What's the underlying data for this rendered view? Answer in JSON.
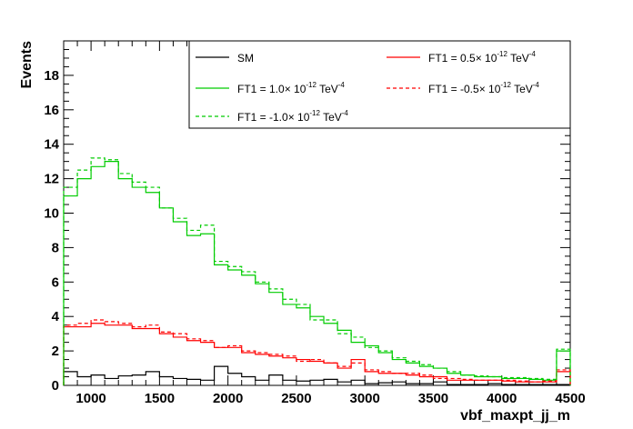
{
  "chart_data": {
    "type": "line",
    "style": "step-histogram",
    "xlabel": "vbf_maxpt_jj_m",
    "ylabel": "Events",
    "xlim": [
      800,
      4500
    ],
    "ylim": [
      0,
      20
    ],
    "x_ticks": [
      1000,
      1500,
      2000,
      2500,
      3000,
      3500,
      4000,
      4500
    ],
    "y_ticks": [
      0,
      2,
      4,
      6,
      8,
      10,
      12,
      14,
      16,
      18
    ],
    "bin_edges": [
      800,
      900,
      1000,
      1100,
      1200,
      1300,
      1400,
      1500,
      1600,
      1700,
      1800,
      1900,
      2000,
      2100,
      2200,
      2300,
      2400,
      2500,
      2600,
      2700,
      2800,
      2900,
      3000,
      3100,
      3200,
      3300,
      3400,
      3500,
      3600,
      3700,
      3800,
      3900,
      4000,
      4100,
      4200,
      4300,
      4400,
      4500
    ],
    "series": [
      {
        "name": "SM",
        "color": "#000000",
        "dashed": false,
        "values": [
          0.8,
          0.5,
          0.6,
          0.4,
          0.55,
          0.6,
          0.8,
          0.5,
          0.4,
          0.35,
          0.3,
          1.1,
          0.7,
          0.5,
          0.3,
          0.6,
          0.3,
          0.25,
          0.3,
          0.35,
          0.2,
          0.3,
          0.1,
          0.15,
          0.2,
          0.1,
          0.1,
          0.2,
          0.05,
          0.05,
          0.05,
          0.1,
          0.05,
          0.05,
          0.05,
          0.05,
          0.05
        ]
      },
      {
        "name": "FT1 = 0.5× 10⁻¹² TeV⁻⁴",
        "color": "#ff0000",
        "dashed": false,
        "values": [
          3.4,
          3.4,
          3.6,
          3.5,
          3.5,
          3.3,
          3.3,
          3.0,
          2.8,
          2.6,
          2.5,
          2.2,
          2.2,
          1.9,
          1.8,
          1.7,
          1.6,
          1.5,
          1.4,
          1.3,
          1.0,
          1.5,
          0.8,
          0.7,
          0.7,
          0.6,
          0.5,
          0.5,
          0.3,
          0.3,
          0.3,
          0.3,
          0.25,
          0.2,
          0.2,
          0.2,
          0.8
        ]
      },
      {
        "name": "FT1 = 1.0× 10⁻¹² TeV⁻⁴",
        "color": "#00cc00",
        "dashed": false,
        "values": [
          11.0,
          12.0,
          12.7,
          13.0,
          12.0,
          11.5,
          11.2,
          10.3,
          9.5,
          8.7,
          8.8,
          7.0,
          6.7,
          6.4,
          5.9,
          5.4,
          4.7,
          4.5,
          4.0,
          3.6,
          3.2,
          2.5,
          2.3,
          1.9,
          1.5,
          1.3,
          1.1,
          1.0,
          0.7,
          0.6,
          0.5,
          0.5,
          0.4,
          0.4,
          0.35,
          0.3,
          2.0
        ]
      },
      {
        "name": "FT1 = -0.5× 10⁻¹² TeV⁻⁴",
        "color": "#ff0000",
        "dashed": true,
        "values": [
          3.5,
          3.6,
          3.8,
          3.7,
          3.6,
          3.4,
          3.5,
          3.1,
          3.0,
          2.7,
          2.6,
          2.2,
          2.3,
          2.0,
          1.9,
          1.8,
          1.7,
          1.4,
          1.5,
          1.3,
          1.1,
          1.3,
          0.9,
          0.8,
          0.7,
          0.7,
          0.6,
          0.4,
          0.4,
          0.35,
          0.3,
          0.3,
          0.3,
          0.25,
          0.2,
          0.25,
          0.9
        ]
      },
      {
        "name": "FT1 = -1.0× 10⁻¹² TeV⁻⁴",
        "color": "#00cc00",
        "dashed": true,
        "values": [
          11.5,
          12.5,
          13.2,
          13.1,
          12.3,
          11.8,
          11.5,
          10.3,
          9.7,
          9.0,
          9.3,
          7.2,
          6.9,
          6.6,
          6.0,
          5.6,
          5.0,
          4.7,
          3.8,
          3.8,
          3.0,
          2.8,
          2.2,
          2.0,
          1.6,
          1.4,
          1.2,
          1.0,
          0.8,
          0.6,
          0.55,
          0.5,
          0.45,
          0.45,
          0.4,
          0.35,
          2.1
        ]
      }
    ],
    "legend": {
      "position": "top-right",
      "entries": [
        {
          "base": "SM",
          "color": "#000000",
          "dashed": false
        },
        {
          "base": "FT1 = 0.5× 10",
          "exp": "-12",
          "unit": "TeV",
          "unit_exp": "-4",
          "color": "#ff0000",
          "dashed": false
        },
        {
          "base": "FT1 = 1.0× 10",
          "exp": "-12",
          "unit": "TeV",
          "unit_exp": "-4",
          "color": "#00cc00",
          "dashed": false
        },
        {
          "base": "FT1 = -0.5× 10",
          "exp": "-12",
          "unit": "TeV",
          "unit_exp": "-4",
          "color": "#ff0000",
          "dashed": true
        },
        {
          "base": "FT1 = -1.0× 10",
          "exp": "-12",
          "unit": "TeV",
          "unit_exp": "-4",
          "color": "#00cc00",
          "dashed": true
        }
      ]
    }
  }
}
